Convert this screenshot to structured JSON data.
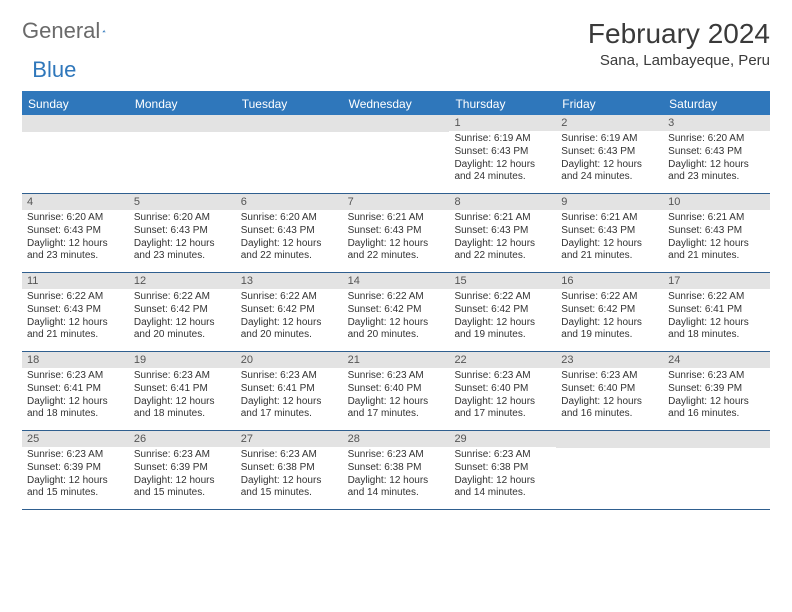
{
  "logo": {
    "text_gray": "General",
    "text_blue": "Blue"
  },
  "header": {
    "month_title": "February 2024",
    "location": "Sana, Lambayeque, Peru"
  },
  "colors": {
    "header_bar": "#2f77bb",
    "daynum_bg": "#e3e3e3",
    "row_border": "#2f5f8f",
    "background": "#ffffff",
    "text": "#333333"
  },
  "weekdays": [
    "Sunday",
    "Monday",
    "Tuesday",
    "Wednesday",
    "Thursday",
    "Friday",
    "Saturday"
  ],
  "weeks": [
    [
      {
        "empty": true
      },
      {
        "empty": true
      },
      {
        "empty": true
      },
      {
        "empty": true
      },
      {
        "day": "1",
        "sunrise": "Sunrise: 6:19 AM",
        "sunset": "Sunset: 6:43 PM",
        "daylight": "Daylight: 12 hours and 24 minutes."
      },
      {
        "day": "2",
        "sunrise": "Sunrise: 6:19 AM",
        "sunset": "Sunset: 6:43 PM",
        "daylight": "Daylight: 12 hours and 24 minutes."
      },
      {
        "day": "3",
        "sunrise": "Sunrise: 6:20 AM",
        "sunset": "Sunset: 6:43 PM",
        "daylight": "Daylight: 12 hours and 23 minutes."
      }
    ],
    [
      {
        "day": "4",
        "sunrise": "Sunrise: 6:20 AM",
        "sunset": "Sunset: 6:43 PM",
        "daylight": "Daylight: 12 hours and 23 minutes."
      },
      {
        "day": "5",
        "sunrise": "Sunrise: 6:20 AM",
        "sunset": "Sunset: 6:43 PM",
        "daylight": "Daylight: 12 hours and 23 minutes."
      },
      {
        "day": "6",
        "sunrise": "Sunrise: 6:20 AM",
        "sunset": "Sunset: 6:43 PM",
        "daylight": "Daylight: 12 hours and 22 minutes."
      },
      {
        "day": "7",
        "sunrise": "Sunrise: 6:21 AM",
        "sunset": "Sunset: 6:43 PM",
        "daylight": "Daylight: 12 hours and 22 minutes."
      },
      {
        "day": "8",
        "sunrise": "Sunrise: 6:21 AM",
        "sunset": "Sunset: 6:43 PM",
        "daylight": "Daylight: 12 hours and 22 minutes."
      },
      {
        "day": "9",
        "sunrise": "Sunrise: 6:21 AM",
        "sunset": "Sunset: 6:43 PM",
        "daylight": "Daylight: 12 hours and 21 minutes."
      },
      {
        "day": "10",
        "sunrise": "Sunrise: 6:21 AM",
        "sunset": "Sunset: 6:43 PM",
        "daylight": "Daylight: 12 hours and 21 minutes."
      }
    ],
    [
      {
        "day": "11",
        "sunrise": "Sunrise: 6:22 AM",
        "sunset": "Sunset: 6:43 PM",
        "daylight": "Daylight: 12 hours and 21 minutes."
      },
      {
        "day": "12",
        "sunrise": "Sunrise: 6:22 AM",
        "sunset": "Sunset: 6:42 PM",
        "daylight": "Daylight: 12 hours and 20 minutes."
      },
      {
        "day": "13",
        "sunrise": "Sunrise: 6:22 AM",
        "sunset": "Sunset: 6:42 PM",
        "daylight": "Daylight: 12 hours and 20 minutes."
      },
      {
        "day": "14",
        "sunrise": "Sunrise: 6:22 AM",
        "sunset": "Sunset: 6:42 PM",
        "daylight": "Daylight: 12 hours and 20 minutes."
      },
      {
        "day": "15",
        "sunrise": "Sunrise: 6:22 AM",
        "sunset": "Sunset: 6:42 PM",
        "daylight": "Daylight: 12 hours and 19 minutes."
      },
      {
        "day": "16",
        "sunrise": "Sunrise: 6:22 AM",
        "sunset": "Sunset: 6:42 PM",
        "daylight": "Daylight: 12 hours and 19 minutes."
      },
      {
        "day": "17",
        "sunrise": "Sunrise: 6:22 AM",
        "sunset": "Sunset: 6:41 PM",
        "daylight": "Daylight: 12 hours and 18 minutes."
      }
    ],
    [
      {
        "day": "18",
        "sunrise": "Sunrise: 6:23 AM",
        "sunset": "Sunset: 6:41 PM",
        "daylight": "Daylight: 12 hours and 18 minutes."
      },
      {
        "day": "19",
        "sunrise": "Sunrise: 6:23 AM",
        "sunset": "Sunset: 6:41 PM",
        "daylight": "Daylight: 12 hours and 18 minutes."
      },
      {
        "day": "20",
        "sunrise": "Sunrise: 6:23 AM",
        "sunset": "Sunset: 6:41 PM",
        "daylight": "Daylight: 12 hours and 17 minutes."
      },
      {
        "day": "21",
        "sunrise": "Sunrise: 6:23 AM",
        "sunset": "Sunset: 6:40 PM",
        "daylight": "Daylight: 12 hours and 17 minutes."
      },
      {
        "day": "22",
        "sunrise": "Sunrise: 6:23 AM",
        "sunset": "Sunset: 6:40 PM",
        "daylight": "Daylight: 12 hours and 17 minutes."
      },
      {
        "day": "23",
        "sunrise": "Sunrise: 6:23 AM",
        "sunset": "Sunset: 6:40 PM",
        "daylight": "Daylight: 12 hours and 16 minutes."
      },
      {
        "day": "24",
        "sunrise": "Sunrise: 6:23 AM",
        "sunset": "Sunset: 6:39 PM",
        "daylight": "Daylight: 12 hours and 16 minutes."
      }
    ],
    [
      {
        "day": "25",
        "sunrise": "Sunrise: 6:23 AM",
        "sunset": "Sunset: 6:39 PM",
        "daylight": "Daylight: 12 hours and 15 minutes."
      },
      {
        "day": "26",
        "sunrise": "Sunrise: 6:23 AM",
        "sunset": "Sunset: 6:39 PM",
        "daylight": "Daylight: 12 hours and 15 minutes."
      },
      {
        "day": "27",
        "sunrise": "Sunrise: 6:23 AM",
        "sunset": "Sunset: 6:38 PM",
        "daylight": "Daylight: 12 hours and 15 minutes."
      },
      {
        "day": "28",
        "sunrise": "Sunrise: 6:23 AM",
        "sunset": "Sunset: 6:38 PM",
        "daylight": "Daylight: 12 hours and 14 minutes."
      },
      {
        "day": "29",
        "sunrise": "Sunrise: 6:23 AM",
        "sunset": "Sunset: 6:38 PM",
        "daylight": "Daylight: 12 hours and 14 minutes."
      },
      {
        "empty": true
      },
      {
        "empty": true
      }
    ]
  ]
}
